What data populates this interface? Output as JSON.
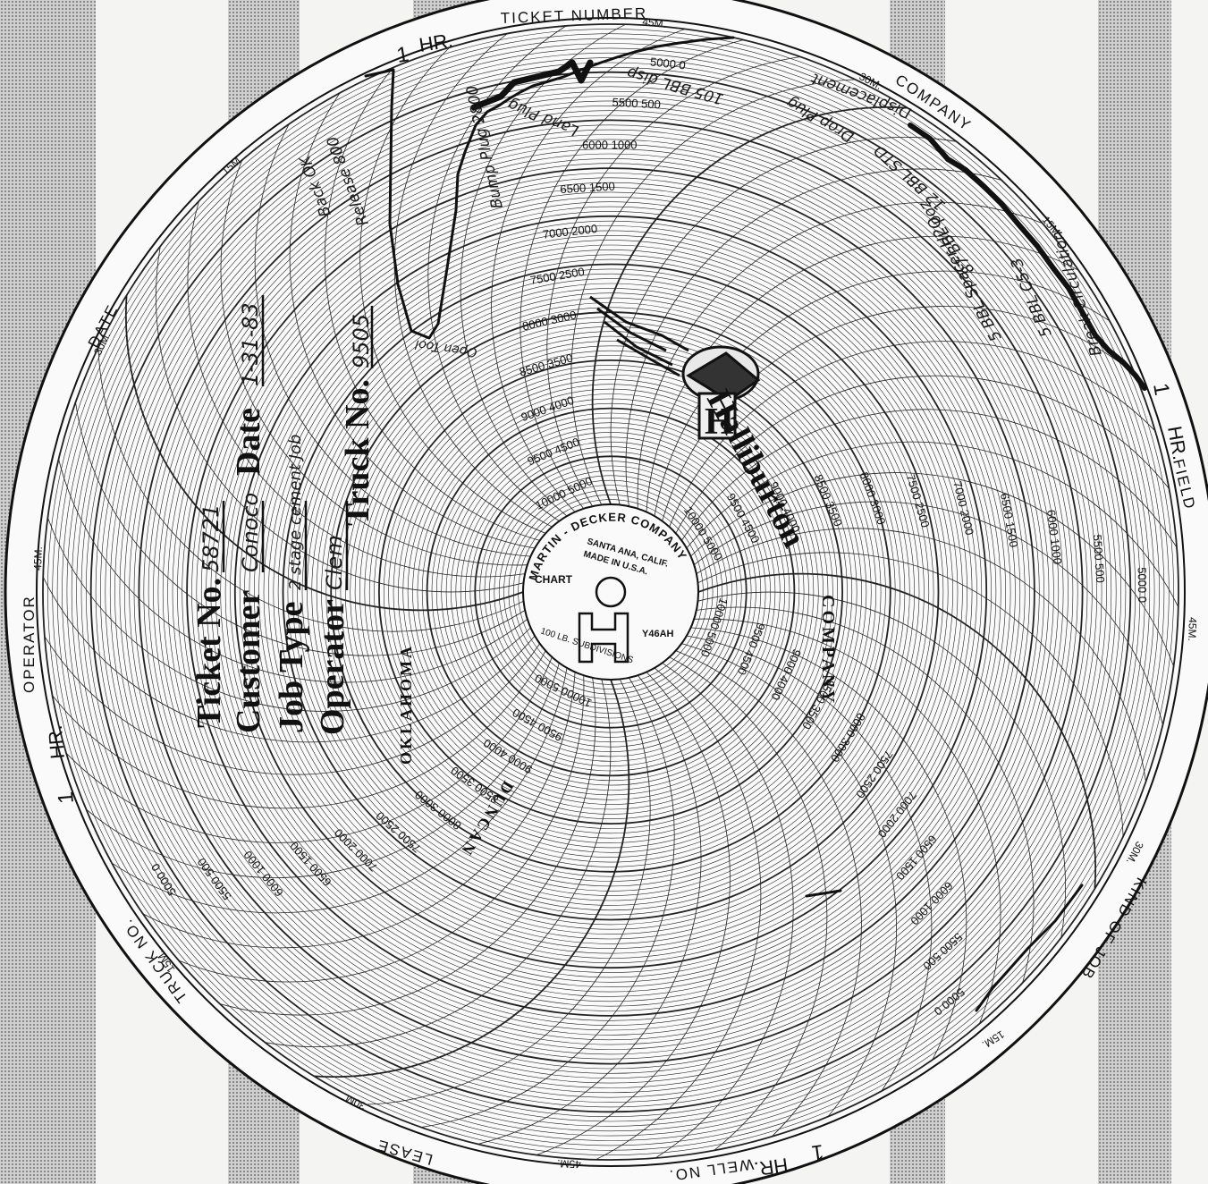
{
  "rim_labels": {
    "ticket_number": "TICKET NUMBER",
    "company": "COMPANY",
    "field": "FIELD",
    "kind_of_job": "KIND OF JOB",
    "well_no": "WELL NO.",
    "lease": "LEASE",
    "truck_no": "TRUCK NO.",
    "operator": "OPERATOR",
    "date": "DATE"
  },
  "time_marks": {
    "hr": "HR.",
    "one": "1",
    "m15": "15M.",
    "m30": "30M.",
    "m45": "45M."
  },
  "pressure_scale": {
    "inner": [
      "5000",
      "5500",
      "6000",
      "6500",
      "7000",
      "7500",
      "8000",
      "8500",
      "9000",
      "9500",
      "10000"
    ],
    "outer": [
      "0",
      "500",
      "1000",
      "1500",
      "2000",
      "2500",
      "3000",
      "3500",
      "4000",
      "4500",
      "5000"
    ]
  },
  "center_label": {
    "maker": "MARTIN - DECKER  COMPANY",
    "location_1": "SANTA ANA, CALIF.",
    "location_2": "MADE IN U.S.A.",
    "chart": "CHART",
    "model": "Y46AH",
    "subdivisions": "100 LB. SUBDIVISIONS",
    "logo_letter": "H"
  },
  "brand": {
    "name": "Halliburton",
    "company": "COMPANY",
    "city": "DUNCAN",
    "state": "OKLAHOMA"
  },
  "form": {
    "ticket_label": "Ticket No.",
    "ticket_value": "58721",
    "date_label": "Date",
    "date_value": "1-31-83",
    "customer_label": "Customer",
    "customer_value": "Conoco",
    "job_type_label": "Job Type",
    "job_type_value": "2 stage cement Job",
    "operator_label": "Operator",
    "operator_value": "Clem",
    "truck_label": "Truck No.",
    "truck_value": "9505"
  },
  "annotations": {
    "a1": "Break Circulation",
    "a2": "5 BBL C5-3",
    "a3": "5 BBL Spacer H2O",
    "a4": "87 BBL poz",
    "a5": "12 BBL STD",
    "a6": "Drop Plug",
    "a7": "Displacement",
    "a8": "105 BBL disp",
    "a9": "Land Plug",
    "a10": "Bump Plug 2800",
    "a11": "Open Tool",
    "a12": "Release 800",
    "a13": "Back OK"
  }
}
